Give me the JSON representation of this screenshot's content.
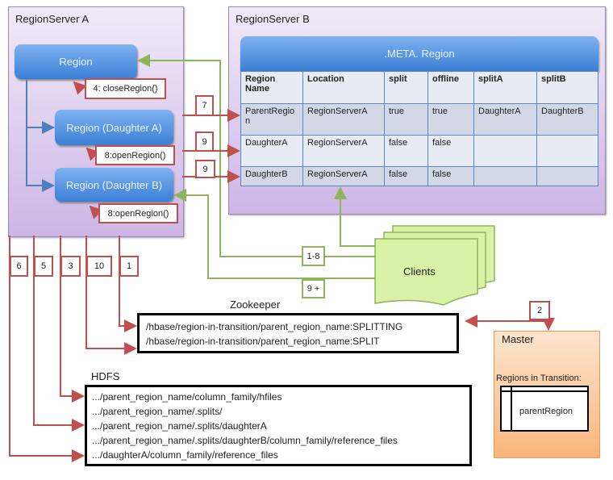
{
  "regionserver_a": {
    "title": "RegionServer A",
    "region": "Region",
    "daughter_a": "Region (Daughter A)",
    "daughter_b": "Region (Daughter B)",
    "close_region": "4: closeRegion()",
    "open_region_a": "8:openRegion()",
    "open_region_b": "8:openRegion()"
  },
  "regionserver_b": {
    "title": "RegionServer B",
    "meta_title": ".META. Region",
    "columns": [
      "Region Name",
      "Location",
      "split",
      "offline",
      "splitA",
      "splitB"
    ],
    "rows": [
      [
        "ParentRegion",
        "RegionServerA",
        "true",
        "true",
        "DaughterA",
        "DaughterB"
      ],
      [
        "DaughterA",
        "RegionServerA",
        "false",
        "false",
        "",
        ""
      ],
      [
        "DaughterB",
        "RegionServerA",
        "false",
        "false",
        "",
        ""
      ]
    ]
  },
  "step_labels": {
    "s7": "7",
    "s9a": "9",
    "s9b": "9",
    "s6": "6",
    "s5": "5",
    "s3": "3",
    "s10": "10",
    "s1": "1",
    "s2": "2",
    "s1_8": "1-8",
    "s9plus": "9 +"
  },
  "clients": {
    "label": "Clients"
  },
  "zookeeper": {
    "title": "Zookeeper",
    "lines": [
      "/hbase/region-in-transition/parent_region_name:SPLITTING",
      "/hbase/region-in-transition/parent_region_name:SPLIT"
    ]
  },
  "hdfs": {
    "title": "HDFS",
    "lines": [
      ".../parent_region_name/column_family/hfiles",
      ".../parent_region_name/.splits/",
      ".../parent_region_name/.splits/daughterA",
      ".../parent_region_name/.splits/daughterB/column_family/reference_files",
      ".../daughterA/column_family/reference_files"
    ]
  },
  "master": {
    "title": "Master",
    "rit_label": "Regions in Transition:",
    "rit_value": "parentRegion"
  },
  "colors": {
    "red": "#c0504d",
    "green": "#8fb55a",
    "blue": "#4a7fc1",
    "purple": "#cdb6e6",
    "orange": "#f9b57a"
  }
}
